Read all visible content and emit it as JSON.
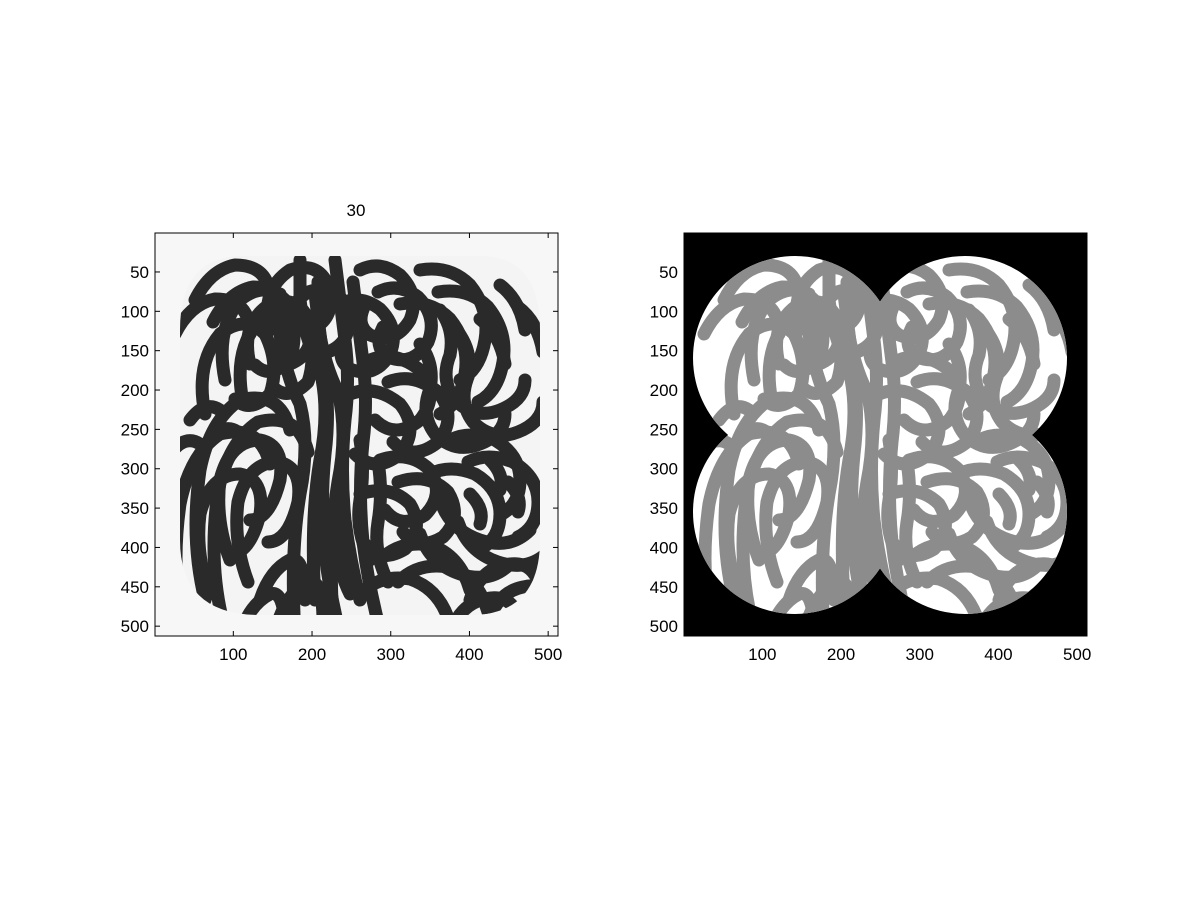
{
  "figure": {
    "background": "#ffffff"
  },
  "chart_data": [
    {
      "type": "heatmap",
      "title": "30",
      "content": "grayscale labyrinthine stripe pattern inside a rounded square mask",
      "colormap": "gray",
      "background_color": "#f7f7f7",
      "stripe_color": "#2a2a2a",
      "xlim": [
        1,
        512
      ],
      "ylim": [
        1,
        512
      ],
      "y_reversed": true,
      "x_ticks": [
        100,
        200,
        300,
        400,
        500
      ],
      "y_ticks": [
        50,
        100,
        150,
        200,
        250,
        300,
        350,
        400,
        450,
        500
      ]
    },
    {
      "type": "heatmap",
      "title": "",
      "content": "gray stripe pattern inside union of four overlapping circles",
      "colormap": "gray",
      "background_color": "#000000",
      "fill_color": "#ffffff",
      "stripe_color": "#8c8c8c",
      "xlim": [
        1,
        512
      ],
      "ylim": [
        1,
        512
      ],
      "y_reversed": true,
      "x_ticks": [
        100,
        200,
        300,
        400,
        500
      ],
      "y_ticks": [
        50,
        100,
        150,
        200,
        250,
        300,
        350,
        400,
        450,
        500
      ]
    }
  ]
}
